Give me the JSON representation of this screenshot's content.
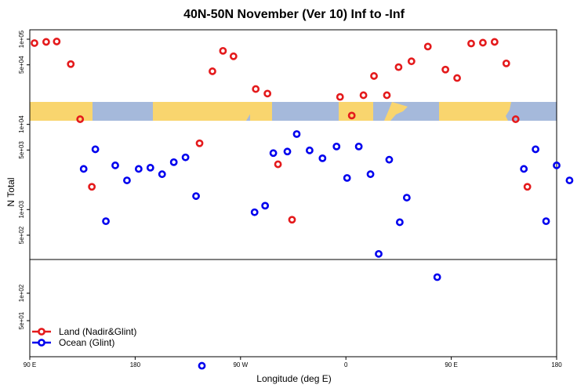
{
  "title": "40N-50N November (Ver 10)   Inf to -Inf",
  "xlabel": "Longitude (deg E)",
  "ylabel": "N Total",
  "colors": {
    "land": "#e41a1c",
    "ocean": "#0000ee",
    "map_land": "#f9d56e",
    "map_ocean": "#a5b9db"
  },
  "chart_data": {
    "type": "scatter",
    "title": "40N-50N November (Ver 10)   Inf to -Inf",
    "xlabel": "Longitude (deg E)",
    "ylabel": "N Total",
    "x_ticks": [
      "90 E",
      "180",
      "90 W",
      "0",
      "90 E",
      "180"
    ],
    "y_ticks_upper": [
      "1e+05",
      "5e+04",
      "1e+04",
      "5e+03",
      "1e+03",
      "5e+02"
    ],
    "y_ticks_lower": [
      "1e+02",
      "5e+01"
    ],
    "legend": [
      "Land (Nadir&Glint)",
      "Ocean (Glint)"
    ],
    "legend_position": "bottom-left",
    "series": [
      {
        "name": "Land (Nadir&Glint)",
        "points": [
          {
            "x": 94,
            "y": 90000
          },
          {
            "x": 104,
            "y": 93000
          },
          {
            "x": 113,
            "y": 94000
          },
          {
            "x": 125,
            "y": 51000
          },
          {
            "x": 133,
            "y": 11500
          },
          {
            "x": 143,
            "y": 1850
          },
          {
            "x": 235,
            "y": 6000
          },
          {
            "x": 246,
            "y": 42000
          },
          {
            "x": 255,
            "y": 73000
          },
          {
            "x": 264,
            "y": 63000
          },
          {
            "x": 283,
            "y": 26000
          },
          {
            "x": 293,
            "y": 23000
          },
          {
            "x": 302,
            "y": 3400
          },
          {
            "x": 314,
            "y": 760
          },
          {
            "x": 355,
            "y": 21000
          },
          {
            "x": 365,
            "y": 12700
          },
          {
            "x": 375,
            "y": 22000
          },
          {
            "x": 384,
            "y": 37000
          },
          {
            "x": 395,
            "y": 22000
          },
          {
            "x": 405,
            "y": 47000
          },
          {
            "x": 416,
            "y": 55000
          },
          {
            "x": 430,
            "y": 82000
          },
          {
            "x": 445,
            "y": 44000
          },
          {
            "x": 455,
            "y": 35000
          },
          {
            "x": 467,
            "y": 89000
          },
          {
            "x": 477,
            "y": 91000
          },
          {
            "x": 487,
            "y": 93000
          },
          {
            "x": 497,
            "y": 52000
          },
          {
            "x": 505,
            "y": 11500
          },
          {
            "x": 515,
            "y": 1850
          }
        ]
      },
      {
        "name": "Ocean (Glint)",
        "points": [
          {
            "x": 136,
            "y": 3000
          },
          {
            "x": 146,
            "y": 5100
          },
          {
            "x": 155,
            "y": 730
          },
          {
            "x": 163,
            "y": 3300
          },
          {
            "x": 173,
            "y": 2200
          },
          {
            "x": 183,
            "y": 3000
          },
          {
            "x": 193,
            "y": 3100
          },
          {
            "x": 203,
            "y": 2600
          },
          {
            "x": 213,
            "y": 3600
          },
          {
            "x": 223,
            "y": 4100
          },
          {
            "x": 232,
            "y": 1440
          },
          {
            "x": 237,
            "y": 16
          },
          {
            "x": 282,
            "y": 930
          },
          {
            "x": 291,
            "y": 1110
          },
          {
            "x": 298,
            "y": 4600
          },
          {
            "x": 310,
            "y": 4800
          },
          {
            "x": 318,
            "y": 7700
          },
          {
            "x": 329,
            "y": 4950
          },
          {
            "x": 340,
            "y": 4000
          },
          {
            "x": 352,
            "y": 5500
          },
          {
            "x": 361,
            "y": 2350
          },
          {
            "x": 371,
            "y": 5500
          },
          {
            "x": 381,
            "y": 2600
          },
          {
            "x": 388,
            "y": 270
          },
          {
            "x": 397,
            "y": 3850
          },
          {
            "x": 406,
            "y": 710
          },
          {
            "x": 412,
            "y": 1380
          },
          {
            "x": 438,
            "y": 150
          },
          {
            "x": 512,
            "y": 3000
          },
          {
            "x": 522,
            "y": 5100
          },
          {
            "x": 531,
            "y": 730
          },
          {
            "x": 540,
            "y": 3300
          },
          {
            "x": 551,
            "y": 2200
          }
        ]
      }
    ],
    "x_range": [
      90,
      540
    ],
    "grid": false
  }
}
